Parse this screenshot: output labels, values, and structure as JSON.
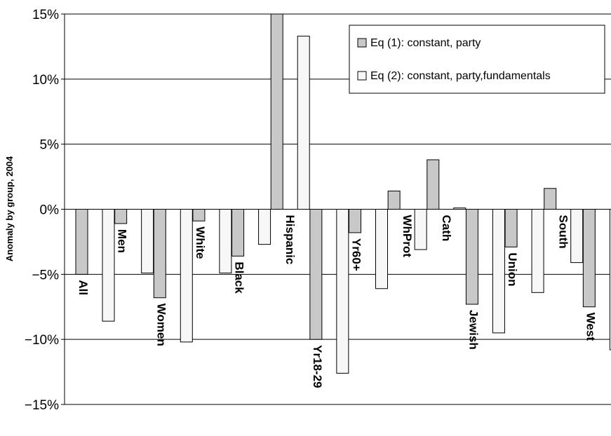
{
  "chart_data": {
    "type": "bar",
    "ylabel": "Anomaly by group, 2004",
    "ylim": [
      -15,
      15
    ],
    "yticks": [
      15,
      10,
      5,
      0,
      -5,
      -10,
      -15
    ],
    "ytick_labels": [
      "15%",
      "10%",
      "5%",
      "0%",
      "−5%",
      "−10%",
      "−15%"
    ],
    "grid": true,
    "legend_position": "top-right",
    "categories": [
      "All",
      "Men",
      "Women",
      "White",
      "Black",
      "Hispanic",
      "Yr18-29",
      "Yr60+",
      "WhProt",
      "Cath",
      "Jewish",
      "Union",
      "South",
      "West"
    ],
    "series": [
      {
        "name": "Eq (1): constant, party",
        "color": "#c8c8c8",
        "values": [
          -5.0,
          -1.1,
          -6.8,
          -0.9,
          -3.6,
          15.0,
          -10.0,
          -1.8,
          1.4,
          3.8,
          -7.3,
          -2.9,
          1.6,
          -7.5
        ]
      },
      {
        "name": "Eq (2): constant, party,fundamentals",
        "color": "#f7f7f7",
        "values": [
          -8.6,
          -4.9,
          -10.2,
          -4.9,
          -2.7,
          13.3,
          -12.6,
          -6.1,
          -3.1,
          0.1,
          -9.5,
          -6.4,
          -4.1,
          -10.8
        ]
      }
    ]
  }
}
